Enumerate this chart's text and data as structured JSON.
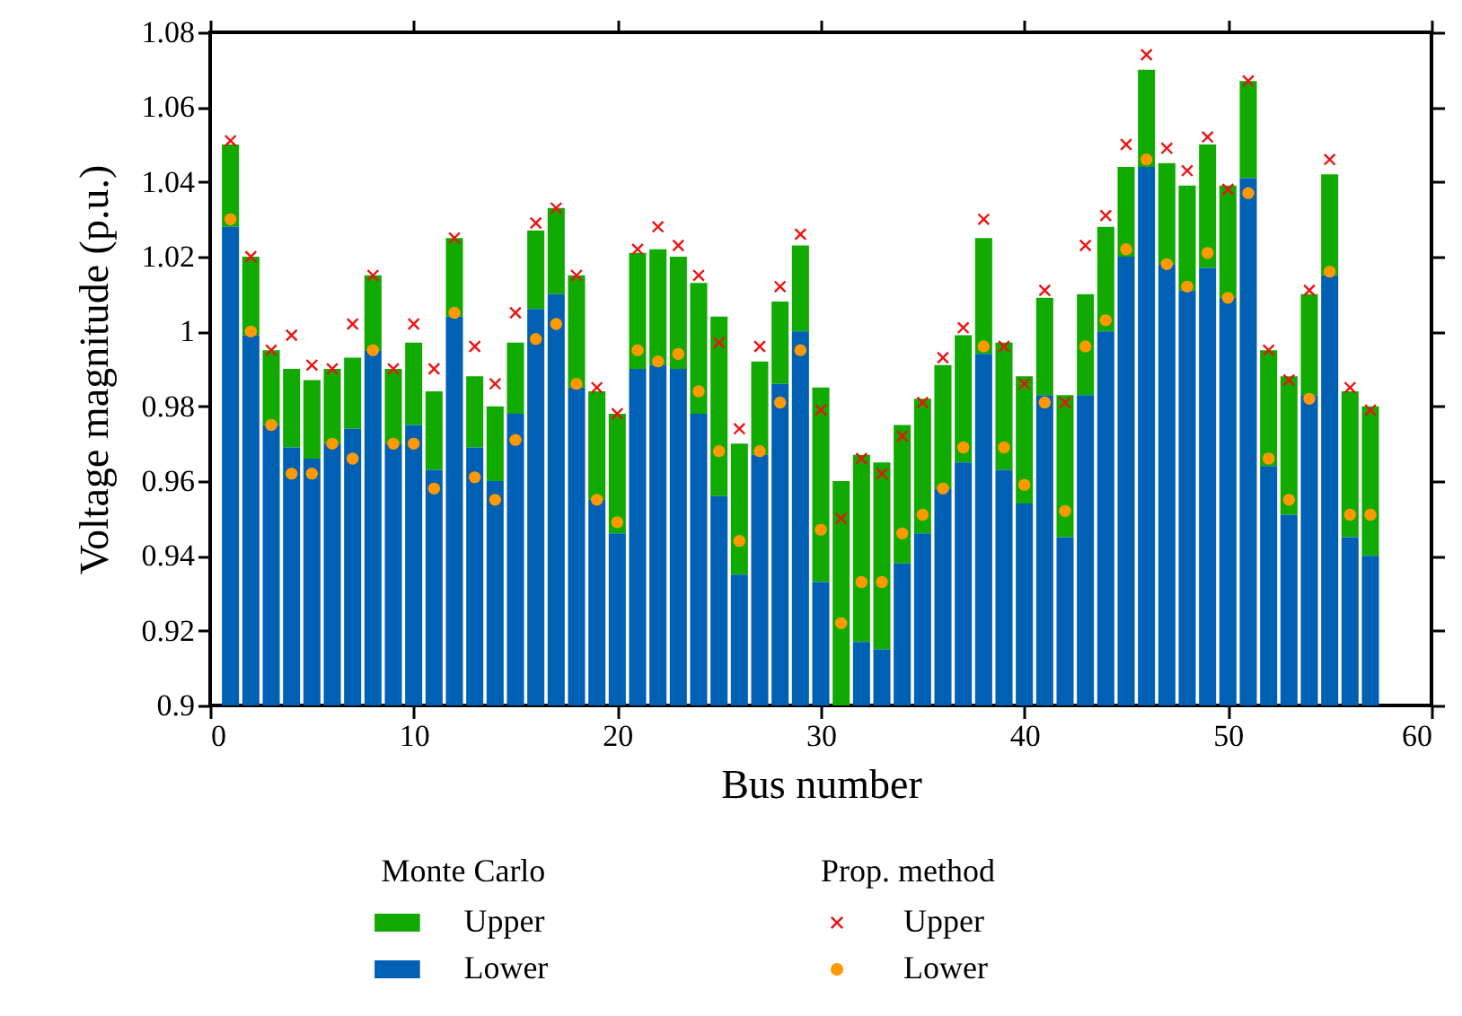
{
  "chart_data": {
    "type": "bar",
    "xlabel": "Bus number",
    "ylabel": "Voltage magnitude (p.u.)",
    "legend_title": [
      "Monte Carlo",
      "Prop. method"
    ],
    "x": [
      1,
      2,
      3,
      4,
      5,
      6,
      7,
      8,
      9,
      10,
      11,
      12,
      13,
      14,
      15,
      16,
      17,
      18,
      19,
      20,
      21,
      22,
      23,
      24,
      25,
      26,
      27,
      28,
      29,
      30,
      31,
      32,
      33,
      34,
      35,
      36,
      37,
      38,
      39,
      40,
      41,
      42,
      43,
      44,
      45,
      46,
      47,
      48,
      49,
      50,
      51,
      52,
      53,
      54,
      55,
      56,
      57
    ],
    "series": [
      {
        "name": "Upper",
        "color": "#11aa00",
        "base": [
          1.028,
          0.999,
          0.975,
          0.969,
          0.966,
          0.97,
          0.974,
          0.995,
          0.97,
          0.975,
          0.963,
          1.004,
          0.969,
          0.96,
          0.978,
          1.006,
          1.01,
          0.985,
          0.955,
          0.946,
          0.99,
          0.991,
          0.99,
          0.978,
          0.956,
          0.935,
          0.967,
          0.986,
          1.0,
          0.933,
          0.9,
          0.917,
          0.915,
          0.938,
          0.946,
          0.958,
          0.965,
          0.994,
          0.963,
          0.954,
          0.983,
          0.945,
          0.983,
          1.0,
          1.02,
          1.044,
          1.018,
          1.011,
          1.017,
          1.009,
          1.041,
          0.964,
          0.951,
          0.983,
          1.015,
          0.945,
          0.94
        ],
        "values": [
          0.022,
          0.021,
          0.02,
          0.021,
          0.021,
          0.02,
          0.019,
          0.02,
          0.02,
          0.022,
          0.021,
          0.021,
          0.019,
          0.02,
          0.019,
          0.021,
          0.023,
          0.03,
          0.029,
          0.032,
          0.031,
          0.031,
          0.03,
          0.035,
          0.048,
          0.035,
          0.025,
          0.022,
          0.023,
          0.052,
          0.06,
          0.05,
          0.05,
          0.037,
          0.036,
          0.033,
          0.034,
          0.031,
          0.034,
          0.034,
          0.026,
          0.038,
          0.027,
          0.028,
          0.024,
          0.026,
          0.027,
          0.028,
          0.033,
          0.03,
          0.026,
          0.031,
          0.037,
          0.027,
          0.027,
          0.039,
          0.04
        ]
      },
      {
        "name": "Lower",
        "color": "#0060b4",
        "values": [
          1.028,
          0.999,
          0.975,
          0.969,
          0.966,
          0.97,
          0.974,
          0.995,
          0.97,
          0.975,
          0.963,
          1.004,
          0.969,
          0.96,
          0.978,
          1.006,
          1.01,
          0.985,
          0.955,
          0.946,
          0.99,
          0.991,
          0.99,
          0.978,
          0.956,
          0.935,
          0.967,
          0.986,
          1.0,
          0.933,
          0.9,
          0.917,
          0.915,
          0.938,
          0.946,
          0.958,
          0.965,
          0.994,
          0.963,
          0.954,
          0.983,
          0.945,
          0.983,
          1.0,
          1.02,
          1.044,
          1.018,
          1.011,
          1.017,
          1.009,
          1.041,
          0.964,
          0.951,
          0.983,
          1.015,
          0.945,
          0.94
        ]
      },
      {
        "name": "Upper",
        "type": "scatter",
        "marker": "cross",
        "color": "#ee1111",
        "values": [
          1.051,
          1.02,
          0.995,
          0.999,
          0.991,
          0.99,
          1.002,
          1.015,
          0.99,
          1.002,
          0.99,
          1.025,
          0.996,
          0.986,
          1.005,
          1.029,
          1.033,
          1.015,
          0.985,
          0.978,
          1.022,
          1.028,
          1.023,
          1.015,
          0.997,
          0.974,
          0.996,
          1.012,
          1.026,
          0.979,
          0.95,
          0.966,
          0.962,
          0.972,
          0.981,
          0.993,
          1.001,
          1.03,
          0.996,
          0.986,
          1.011,
          0.981,
          1.023,
          1.031,
          1.05,
          1.074,
          1.049,
          1.043,
          1.052,
          1.038,
          1.067,
          0.995,
          0.987,
          1.011,
          1.046,
          0.985,
          0.979
        ]
      },
      {
        "name": "Lower",
        "type": "scatter",
        "marker": "circle",
        "color": "#ff9900",
        "values": [
          1.03,
          1.0,
          0.975,
          0.962,
          0.962,
          0.97,
          0.966,
          0.995,
          0.97,
          0.97,
          0.958,
          1.005,
          0.961,
          0.955,
          0.971,
          0.998,
          1.002,
          0.986,
          0.955,
          0.949,
          0.995,
          0.992,
          0.994,
          0.984,
          0.968,
          0.944,
          0.968,
          0.981,
          0.995,
          0.947,
          0.922,
          0.933,
          0.933,
          0.946,
          0.951,
          0.958,
          0.969,
          0.996,
          0.969,
          0.959,
          0.981,
          0.952,
          0.996,
          1.003,
          1.022,
          1.046,
          1.018,
          1.012,
          1.021,
          1.009,
          1.037,
          0.966,
          0.955,
          0.982,
          1.016,
          0.951,
          0.951
        ]
      }
    ],
    "xlim": [
      0,
      60
    ],
    "xticks": [
      0,
      10,
      20,
      30,
      40,
      50,
      60
    ],
    "ylim": [
      0.9,
      1.08
    ],
    "yticks": [
      0.9,
      0.92,
      0.94,
      0.96,
      0.98,
      1,
      1.02,
      1.04,
      1.06,
      1.08
    ],
    "grid": false,
    "legend": "bottom"
  }
}
